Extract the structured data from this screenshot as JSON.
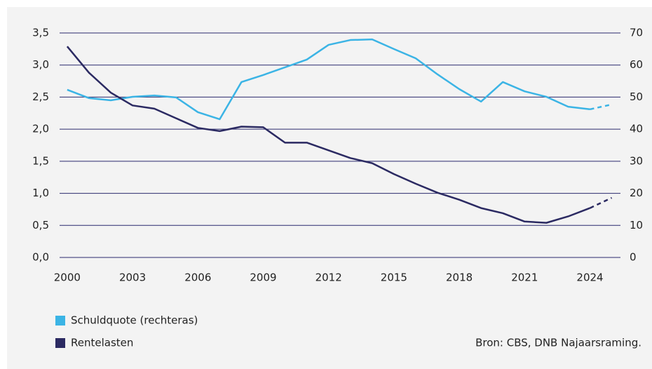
{
  "chart_data": {
    "type": "line",
    "x": [
      2000,
      2001,
      2002,
      2003,
      2004,
      2005,
      2006,
      2007,
      2008,
      2009,
      2010,
      2011,
      2012,
      2013,
      2014,
      2015,
      2016,
      2017,
      2018,
      2019,
      2020,
      2021,
      2022,
      2023,
      2024,
      2025
    ],
    "xlim": [
      1999.65,
      2025.4
    ],
    "xticks": [
      2000,
      2003,
      2006,
      2009,
      2012,
      2015,
      2018,
      2021,
      2024
    ],
    "ylim": [
      0,
      3.5
    ],
    "yticks": [
      {
        "value": 0,
        "label": "0,0"
      },
      {
        "value": 0.5,
        "label": "0,5"
      },
      {
        "value": 1,
        "label": "1,0"
      },
      {
        "value": 1.5,
        "label": "1,5"
      },
      {
        "value": 2,
        "label": "2,0"
      },
      {
        "value": 2.5,
        "label": "2,5"
      },
      {
        "value": 3,
        "label": "3,0"
      },
      {
        "value": 3.5,
        "label": "3,5"
      }
    ],
    "y2lim": [
      0,
      70
    ],
    "y2ticks": [
      0,
      10,
      20,
      30,
      40,
      50,
      60,
      70
    ],
    "grid": true,
    "forecast_start": 2024,
    "series": [
      {
        "name": "Schuldquote (rechteras)",
        "color": "#3bb4e5",
        "axis": "y2",
        "values": [
          52.3,
          49.7,
          49.0,
          50.1,
          50.5,
          49.9,
          45.3,
          43.1,
          54.7,
          56.9,
          59.3,
          61.7,
          66.3,
          67.8,
          68.0,
          65.0,
          62.1,
          57.1,
          52.5,
          48.6,
          54.7,
          51.8,
          50.1,
          47.0,
          46.2,
          47.7
        ]
      },
      {
        "name": "Rentelasten",
        "color": "#2b2a62",
        "values": [
          3.29,
          2.88,
          2.57,
          2.37,
          2.32,
          2.17,
          2.02,
          1.97,
          2.04,
          2.03,
          1.79,
          1.79,
          1.67,
          1.55,
          1.47,
          1.3,
          1.15,
          1.01,
          0.9,
          0.77,
          0.69,
          0.56,
          0.54,
          0.64,
          0.77,
          0.93
        ]
      }
    ],
    "source": "Bron: CBS, DNB Najaarsraming."
  }
}
